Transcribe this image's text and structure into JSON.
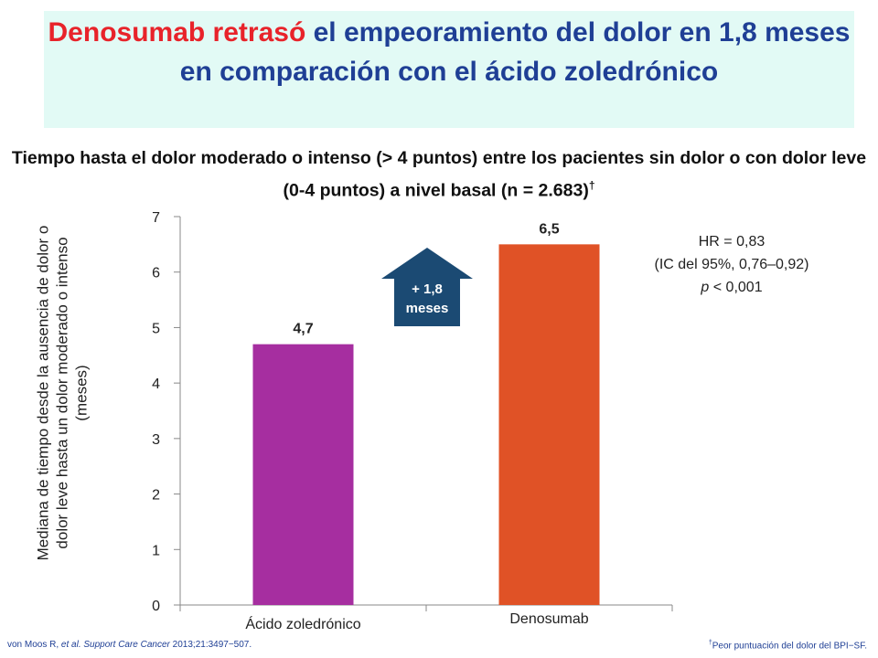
{
  "header": {
    "highlight": "Denosumab retrasó",
    "rest": " el empeoramiento del dolor en 1,8 meses en comparación con el ácido zoledrónico",
    "highlight_color": "#e8232a",
    "text_color": "#1f3f95",
    "band_color": "#e2faf5"
  },
  "chart_data": {
    "type": "bar",
    "title": "Tiempo hasta el dolor moderado o intenso (> 4 puntos) entre los pacientes sin dolor o con dolor leve (0-4 puntos) a nivel basal (n = 2.683)",
    "title_mark": "†",
    "ylabel": "Mediana de tiempo desde la ausencia de dolor o dolor leve hasta un dolor moderado o intenso (meses)",
    "xlabel": "",
    "categories": [
      "Ácido zoledrónico",
      "Denosumab"
    ],
    "values": [
      4.7,
      6.5
    ],
    "value_labels": [
      "4,7",
      "6,5"
    ],
    "colors": [
      "#a62ea0",
      "#e05226"
    ],
    "ylim": [
      0,
      7
    ],
    "yticks": [
      0,
      1,
      2,
      3,
      4,
      5,
      6,
      7
    ],
    "grid": false,
    "annotation": {
      "line1": "+ 1,8",
      "line2": "meses",
      "color": "#1b4a73"
    }
  },
  "stats": {
    "hr": "HR = 0,83",
    "ci": "(IC del 95%, 0,76–0,92)",
    "p_symbol": "p",
    "p_value": " < 0,001"
  },
  "footer": {
    "ref_author": "von Moos R, ",
    "ref_etal": "et al.",
    "ref_journal": " Support Care Cancer",
    "ref_rest": " 2013;21:3497−507.",
    "note_mark": "†",
    "note_text": "Peor puntuación del dolor del BPI−SF."
  }
}
